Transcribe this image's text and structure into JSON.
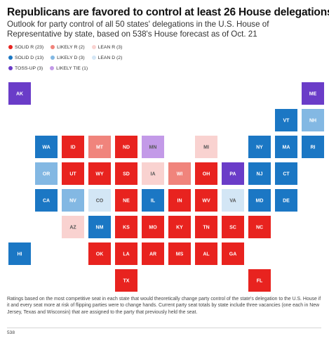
{
  "header": {
    "title": "Republicans are favored to control at least 26 House delegations",
    "subtitle": "Outlook for party control of all 50 states' delegations in the U.S. House of Representative by state, based on 538's House forecast as of Oct. 21"
  },
  "colors": {
    "SOLID_R": "#e8231f",
    "LIKELY_R": "#f0847c",
    "LEAN_R": "#f9d2d0",
    "SOLID_D": "#1b77c4",
    "LIKELY_D": "#83b8e3",
    "LEAN_D": "#d3e6f5",
    "TOSS_UP": "#6a3cc8",
    "LIKELY_TIE": "#c39ae8"
  },
  "legend": {
    "row1": [
      {
        "key": "SOLID_R",
        "label": "SOLID R (23)"
      },
      {
        "key": "LIKELY_R",
        "label": "LIKELY R (2)"
      },
      {
        "key": "LEAN_R",
        "label": "LEAN R (3)"
      }
    ],
    "row2": [
      {
        "key": "SOLID_D",
        "label": "SOLID D (13)"
      },
      {
        "key": "LIKELY_D",
        "label": "LIKELY D (3)"
      },
      {
        "key": "LEAN_D",
        "label": "LEAN D (2)"
      }
    ],
    "row3": [
      {
        "key": "TOSS_UP",
        "label": "TOSS-UP (3)"
      },
      {
        "key": "LIKELY_TIE",
        "label": "LIKELY TIE (1)"
      }
    ]
  },
  "chart_data": {
    "type": "tile-grid map",
    "states": [
      {
        "state": "AK",
        "rating": "TOSS_UP",
        "col": 0,
        "row": 0
      },
      {
        "state": "ME",
        "rating": "TOSS_UP",
        "col": 11,
        "row": 0
      },
      {
        "state": "VT",
        "rating": "SOLID_D",
        "col": 10,
        "row": 1
      },
      {
        "state": "NH",
        "rating": "LIKELY_D",
        "col": 11,
        "row": 1
      },
      {
        "state": "WA",
        "rating": "SOLID_D",
        "col": 1,
        "row": 2
      },
      {
        "state": "ID",
        "rating": "SOLID_R",
        "col": 2,
        "row": 2
      },
      {
        "state": "MT",
        "rating": "LIKELY_R",
        "col": 3,
        "row": 2
      },
      {
        "state": "ND",
        "rating": "SOLID_R",
        "col": 4,
        "row": 2
      },
      {
        "state": "MN",
        "rating": "LIKELY_TIE",
        "col": 5,
        "row": 2
      },
      {
        "state": "MI",
        "rating": "LEAN_R",
        "col": 7,
        "row": 2
      },
      {
        "state": "NY",
        "rating": "SOLID_D",
        "col": 9,
        "row": 2
      },
      {
        "state": "MA",
        "rating": "SOLID_D",
        "col": 10,
        "row": 2
      },
      {
        "state": "RI",
        "rating": "SOLID_D",
        "col": 11,
        "row": 2
      },
      {
        "state": "OR",
        "rating": "LIKELY_D",
        "col": 1,
        "row": 3
      },
      {
        "state": "UT",
        "rating": "SOLID_R",
        "col": 2,
        "row": 3
      },
      {
        "state": "WY",
        "rating": "SOLID_R",
        "col": 3,
        "row": 3
      },
      {
        "state": "SD",
        "rating": "SOLID_R",
        "col": 4,
        "row": 3
      },
      {
        "state": "IA",
        "rating": "LEAN_R",
        "col": 5,
        "row": 3
      },
      {
        "state": "WI",
        "rating": "LIKELY_R",
        "col": 6,
        "row": 3
      },
      {
        "state": "OH",
        "rating": "SOLID_R",
        "col": 7,
        "row": 3
      },
      {
        "state": "PA",
        "rating": "TOSS_UP",
        "col": 8,
        "row": 3
      },
      {
        "state": "NJ",
        "rating": "SOLID_D",
        "col": 9,
        "row": 3
      },
      {
        "state": "CT",
        "rating": "SOLID_D",
        "col": 10,
        "row": 3
      },
      {
        "state": "CA",
        "rating": "SOLID_D",
        "col": 1,
        "row": 4
      },
      {
        "state": "NV",
        "rating": "LIKELY_D",
        "col": 2,
        "row": 4
      },
      {
        "state": "CO",
        "rating": "LEAN_D",
        "col": 3,
        "row": 4
      },
      {
        "state": "NE",
        "rating": "SOLID_R",
        "col": 4,
        "row": 4
      },
      {
        "state": "IL",
        "rating": "SOLID_D",
        "col": 5,
        "row": 4
      },
      {
        "state": "IN",
        "rating": "SOLID_R",
        "col": 6,
        "row": 4
      },
      {
        "state": "WV",
        "rating": "SOLID_R",
        "col": 7,
        "row": 4
      },
      {
        "state": "VA",
        "rating": "LEAN_D",
        "col": 8,
        "row": 4
      },
      {
        "state": "MD",
        "rating": "SOLID_D",
        "col": 9,
        "row": 4
      },
      {
        "state": "DE",
        "rating": "SOLID_D",
        "col": 10,
        "row": 4
      },
      {
        "state": "AZ",
        "rating": "LEAN_R",
        "col": 2,
        "row": 5
      },
      {
        "state": "NM",
        "rating": "SOLID_D",
        "col": 3,
        "row": 5
      },
      {
        "state": "KS",
        "rating": "SOLID_R",
        "col": 4,
        "row": 5
      },
      {
        "state": "MO",
        "rating": "SOLID_R",
        "col": 5,
        "row": 5
      },
      {
        "state": "KY",
        "rating": "SOLID_R",
        "col": 6,
        "row": 5
      },
      {
        "state": "TN",
        "rating": "SOLID_R",
        "col": 7,
        "row": 5
      },
      {
        "state": "SC",
        "rating": "SOLID_R",
        "col": 8,
        "row": 5
      },
      {
        "state": "NC",
        "rating": "SOLID_R",
        "col": 9,
        "row": 5
      },
      {
        "state": "HI",
        "rating": "SOLID_D",
        "col": 0,
        "row": 6
      },
      {
        "state": "OK",
        "rating": "SOLID_R",
        "col": 3,
        "row": 6
      },
      {
        "state": "LA",
        "rating": "SOLID_R",
        "col": 4,
        "row": 6
      },
      {
        "state": "AR",
        "rating": "SOLID_R",
        "col": 5,
        "row": 6
      },
      {
        "state": "MS",
        "rating": "SOLID_R",
        "col": 6,
        "row": 6
      },
      {
        "state": "AL",
        "rating": "SOLID_R",
        "col": 7,
        "row": 6
      },
      {
        "state": "GA",
        "rating": "SOLID_R",
        "col": 8,
        "row": 6
      },
      {
        "state": "TX",
        "rating": "SOLID_R",
        "col": 4,
        "row": 7
      },
      {
        "state": "FL",
        "rating": "SOLID_R",
        "col": 9,
        "row": 7
      }
    ]
  },
  "footnote": "Ratings based on the most competitive seat in each state that would theoretically change party control of the state's delegation to the U.S. House if it and every seat more at risk of flipping parties were to change hands. Current party seat totals by state include three vacancies (one each in New Jersey, Texas and Wisconsin) that are assigned to the party that previously held the seat.",
  "source": "538"
}
